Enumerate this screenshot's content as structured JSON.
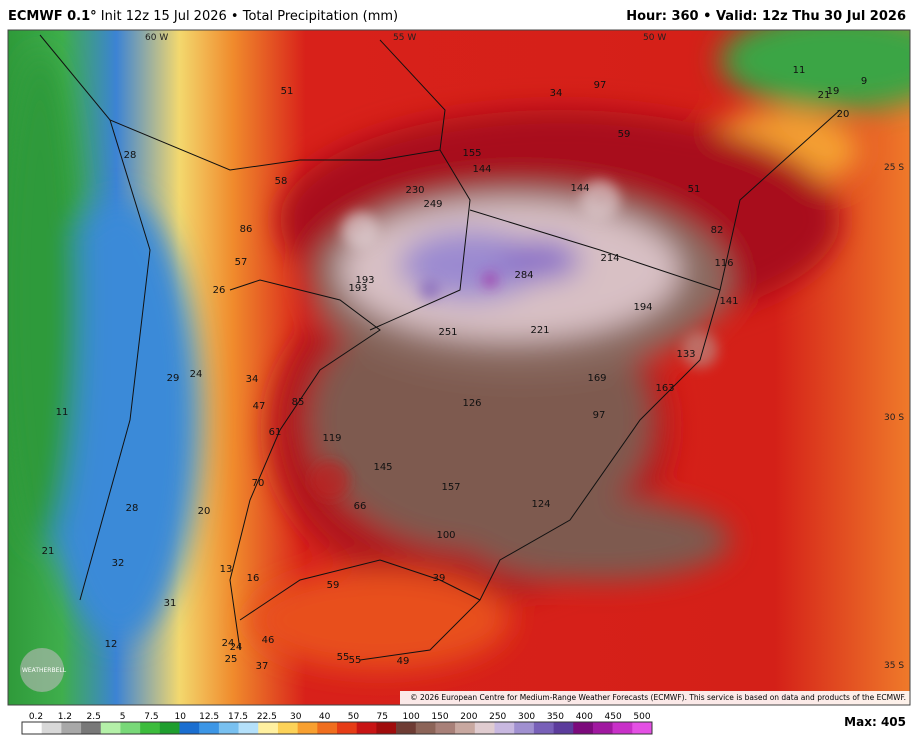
{
  "header": {
    "model": "ECMWF 0.1°",
    "init": "Init 12z 15 Jul 2026",
    "sep1": "•",
    "field": "Total Precipitation (mm)",
    "hour_label": "Hour:",
    "hour": "360",
    "sep2": "•",
    "valid_label": "Valid:",
    "valid": "12z Thu 30 Jul 2026"
  },
  "map": {
    "grid_labels": [
      "60 W",
      "55 W",
      "50 W",
      "25 S",
      "30 S",
      "35 S"
    ],
    "point_values": [
      51,
      34,
      97,
      11,
      9,
      21,
      19,
      20,
      28,
      59,
      155,
      144,
      144,
      51,
      58,
      230,
      249,
      86,
      82,
      57,
      214,
      116,
      284,
      193,
      193,
      26,
      141,
      194,
      251,
      221,
      133,
      29,
      24,
      34,
      169,
      163,
      47,
      85,
      126,
      11,
      97,
      61,
      119,
      145,
      70,
      157,
      28,
      20,
      66,
      124,
      100,
      21,
      32,
      13,
      16,
      59,
      39,
      31,
      12,
      24,
      24,
      46,
      25,
      37,
      55,
      55,
      49
    ],
    "copyright": "© 2026 European Centre for Medium-Range Weather Forecasts (ECMWF). This service is based on data and products of the ECMWF.",
    "logo": "WEATHERBELL"
  },
  "colorbar": {
    "labels": [
      "0.2",
      "1.2",
      "2.5",
      "5",
      "7.5",
      "10",
      "12.5",
      "17.5",
      "22.5",
      "30",
      "40",
      "50",
      "75",
      "100",
      "150",
      "200",
      "250",
      "300",
      "350",
      "400",
      "450",
      "500"
    ]
  },
  "max": {
    "label": "Max:",
    "value": 405
  }
}
